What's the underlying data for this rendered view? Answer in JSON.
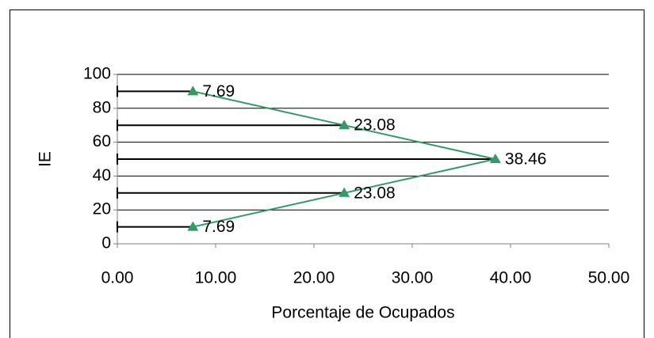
{
  "chart_data": {
    "type": "line",
    "xlabel": "Porcentaje de Ocupados",
    "ylabel": "IE",
    "x": [
      7.69,
      23.08,
      38.46,
      23.08,
      7.69
    ],
    "series": [
      {
        "color": "#339966",
        "values": [
          90,
          70,
          50,
          30,
          10
        ]
      }
    ],
    "xlim": [
      0,
      50
    ],
    "xticks": [
      {
        "value": 0,
        "label": "0.00"
      },
      {
        "value": 10,
        "label": "10.00"
      },
      {
        "value": 20,
        "label": "20.00"
      },
      {
        "value": 30,
        "label": "30.00"
      },
      {
        "value": 40,
        "label": "40.00"
      },
      {
        "value": 50,
        "label": "50.00"
      }
    ],
    "ylim": [
      0,
      100
    ],
    "yticks": [
      0,
      20,
      40,
      60,
      80,
      100
    ],
    "grid": true
  }
}
